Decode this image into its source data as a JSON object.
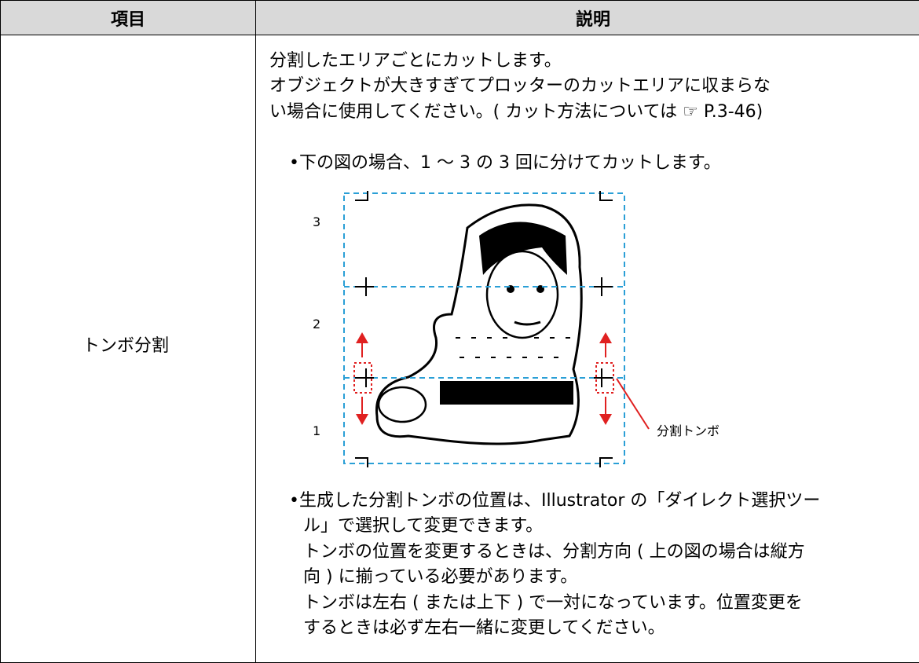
{
  "table": {
    "header": [
      "項目",
      "説明"
    ],
    "rows": [
      {
        "item": "トンボ分割",
        "description": {
          "intro": [
            "分割したエリアごとにカットします。",
            "オブジェクトが大きすぎてプロッターのカットエリアに収まらな",
            "い場合に使用してください。( カット方法については ☞ P.3-46)"
          ],
          "bullet1": "•下の図の場合、1 〜 3 の 3 回に分けてカットします。",
          "figure": {
            "labels": [
              "3",
              "2",
              "1"
            ],
            "callout": "分割トンボ"
          },
          "bullet2": [
            "•生成した分割トンボの位置は、Illustrator の「ダイレクト選択ツー",
            "ル」で選択して変更できます。",
            "トンボの位置を変更するときは、分割方向 ( 上の図の場合は縦方",
            "向 ) に揃っている必要があります。",
            "トンボは左右 ( または上下 ) で一対になっています。位置変更を",
            "するときは必ず左右一緒に変更してください。"
          ]
        }
      }
    ]
  }
}
